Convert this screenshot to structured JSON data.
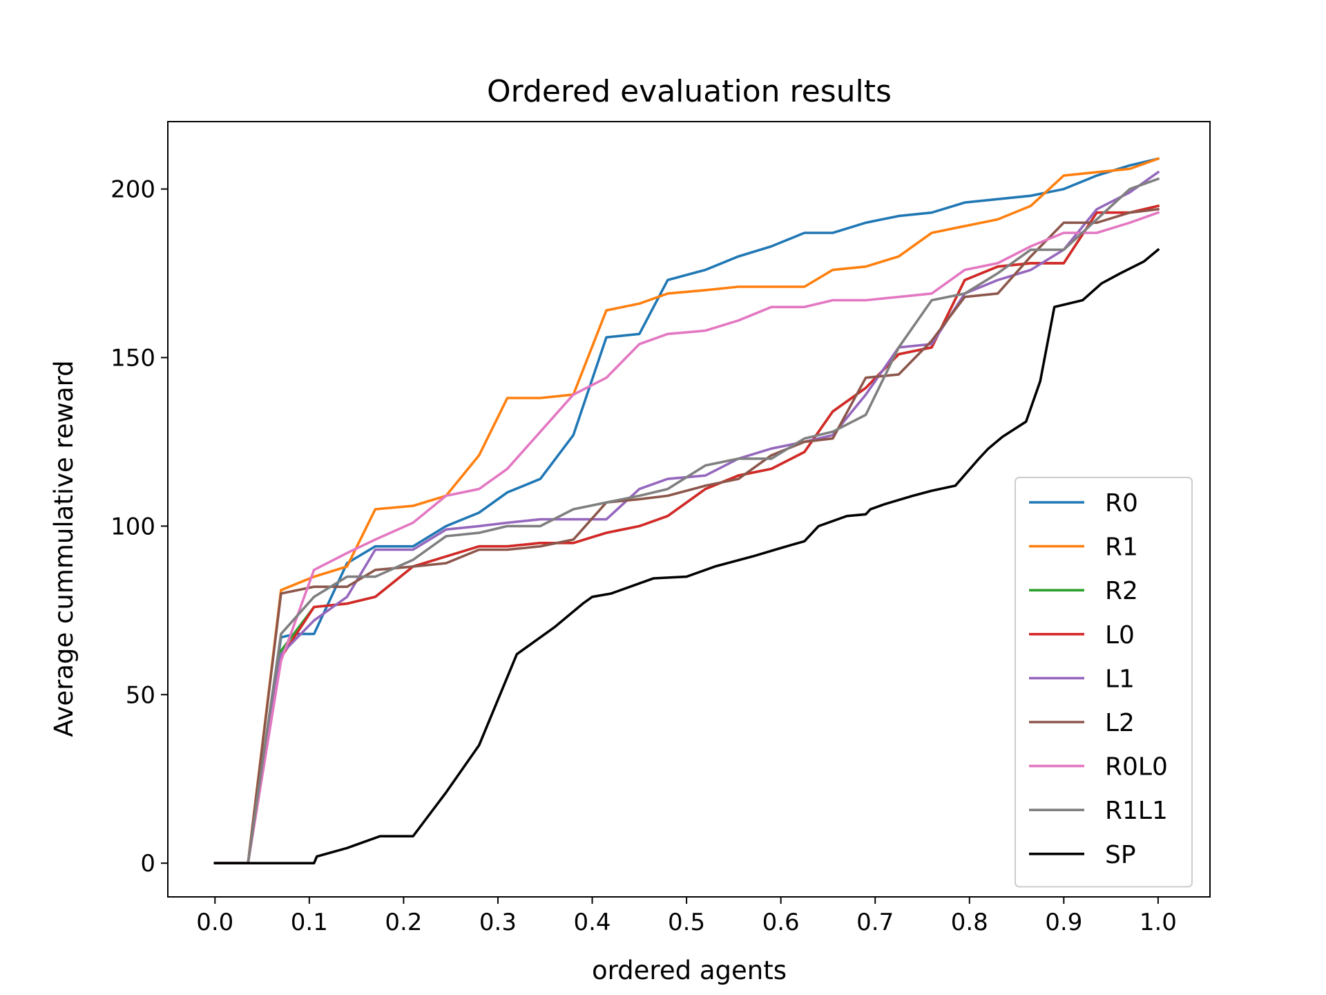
{
  "chart_data": {
    "type": "line",
    "title": "Ordered evaluation results",
    "xlabel": "ordered agents",
    "ylabel": "Average cummulative reward",
    "xlim": [
      -0.05,
      1.055
    ],
    "ylim": [
      -10,
      220
    ],
    "xticks": [
      0.0,
      0.1,
      0.2,
      0.3,
      0.4,
      0.5,
      0.6,
      0.7,
      0.8,
      0.9,
      1.0
    ],
    "xtick_labels": [
      "0.0",
      "0.1",
      "0.2",
      "0.3",
      "0.4",
      "0.5",
      "0.6",
      "0.7",
      "0.8",
      "0.9",
      "1.0"
    ],
    "yticks": [
      0,
      50,
      100,
      150,
      200
    ],
    "ytick_labels": [
      "0",
      "50",
      "100",
      "150",
      "200"
    ],
    "grid": false,
    "legend_position": "lower-right",
    "series": [
      {
        "name": "R0",
        "color": "#1f77b4",
        "points": [
          [
            0,
            0
          ],
          [
            0.035,
            0
          ],
          [
            0.07,
            67
          ],
          [
            0.085,
            68
          ],
          [
            0.105,
            68
          ],
          [
            0.14,
            89
          ],
          [
            0.17,
            94
          ],
          [
            0.21,
            94
          ],
          [
            0.245,
            100
          ],
          [
            0.28,
            104
          ],
          [
            0.31,
            110
          ],
          [
            0.345,
            114
          ],
          [
            0.38,
            127
          ],
          [
            0.415,
            156
          ],
          [
            0.45,
            157
          ],
          [
            0.48,
            173
          ],
          [
            0.52,
            176
          ],
          [
            0.555,
            180
          ],
          [
            0.59,
            183
          ],
          [
            0.625,
            187
          ],
          [
            0.655,
            187
          ],
          [
            0.69,
            190
          ],
          [
            0.725,
            192
          ],
          [
            0.76,
            193
          ],
          [
            0.795,
            196
          ],
          [
            0.83,
            197
          ],
          [
            0.865,
            198
          ],
          [
            0.9,
            200
          ],
          [
            0.935,
            204
          ],
          [
            0.97,
            207
          ],
          [
            1.0,
            209
          ]
        ]
      },
      {
        "name": "R1",
        "color": "#ff7f0e",
        "points": [
          [
            0,
            0
          ],
          [
            0.035,
            0
          ],
          [
            0.07,
            81
          ],
          [
            0.105,
            85
          ],
          [
            0.14,
            88
          ],
          [
            0.17,
            105
          ],
          [
            0.21,
            106
          ],
          [
            0.245,
            109
          ],
          [
            0.28,
            121
          ],
          [
            0.31,
            138
          ],
          [
            0.345,
            138
          ],
          [
            0.38,
            139
          ],
          [
            0.415,
            164
          ],
          [
            0.45,
            166
          ],
          [
            0.48,
            169
          ],
          [
            0.52,
            170
          ],
          [
            0.555,
            171
          ],
          [
            0.59,
            171
          ],
          [
            0.625,
            171
          ],
          [
            0.655,
            176
          ],
          [
            0.69,
            177
          ],
          [
            0.725,
            180
          ],
          [
            0.76,
            187
          ],
          [
            0.795,
            189
          ],
          [
            0.83,
            191
          ],
          [
            0.865,
            195
          ],
          [
            0.9,
            204
          ],
          [
            0.935,
            205
          ],
          [
            0.97,
            206
          ],
          [
            1.0,
            209
          ]
        ]
      },
      {
        "name": "R2",
        "color": "#2ca02c",
        "points": [
          [
            0,
            0
          ],
          [
            0.035,
            0
          ],
          [
            0.07,
            63
          ],
          [
            0.105,
            76
          ],
          [
            0.14,
            77
          ],
          [
            0.17,
            79
          ],
          [
            0.21,
            88
          ],
          [
            0.245,
            91
          ],
          [
            0.28,
            94
          ],
          [
            0.31,
            94
          ],
          [
            0.345,
            95
          ],
          [
            0.38,
            95
          ],
          [
            0.415,
            98
          ],
          [
            0.45,
            100
          ],
          [
            0.48,
            103
          ],
          [
            0.52,
            111
          ],
          [
            0.555,
            115
          ],
          [
            0.59,
            117
          ],
          [
            0.625,
            122
          ],
          [
            0.655,
            134
          ],
          [
            0.69,
            141
          ],
          [
            0.725,
            151
          ],
          [
            0.76,
            153
          ],
          [
            0.795,
            173
          ],
          [
            0.83,
            177
          ],
          [
            0.865,
            178
          ],
          [
            0.9,
            178
          ],
          [
            0.935,
            193
          ],
          [
            0.97,
            193
          ],
          [
            1.0,
            195
          ]
        ]
      },
      {
        "name": "L0",
        "color": "#d62728",
        "points": [
          [
            0,
            0
          ],
          [
            0.035,
            0
          ],
          [
            0.07,
            61
          ],
          [
            0.105,
            76
          ],
          [
            0.14,
            77
          ],
          [
            0.17,
            79
          ],
          [
            0.21,
            88
          ],
          [
            0.245,
            91
          ],
          [
            0.28,
            94
          ],
          [
            0.31,
            94
          ],
          [
            0.345,
            95
          ],
          [
            0.38,
            95
          ],
          [
            0.415,
            98
          ],
          [
            0.45,
            100
          ],
          [
            0.48,
            103
          ],
          [
            0.52,
            111
          ],
          [
            0.555,
            115
          ],
          [
            0.59,
            117
          ],
          [
            0.625,
            122
          ],
          [
            0.655,
            134
          ],
          [
            0.69,
            141
          ],
          [
            0.725,
            151
          ],
          [
            0.76,
            153
          ],
          [
            0.795,
            173
          ],
          [
            0.83,
            177
          ],
          [
            0.865,
            178
          ],
          [
            0.9,
            178
          ],
          [
            0.935,
            193
          ],
          [
            0.97,
            193
          ],
          [
            1.0,
            195
          ]
        ]
      },
      {
        "name": "L1",
        "color": "#9467bd",
        "points": [
          [
            0,
            0
          ],
          [
            0.035,
            0
          ],
          [
            0.07,
            62
          ],
          [
            0.105,
            72
          ],
          [
            0.14,
            79
          ],
          [
            0.17,
            93
          ],
          [
            0.21,
            93
          ],
          [
            0.245,
            99
          ],
          [
            0.28,
            100
          ],
          [
            0.31,
            101
          ],
          [
            0.345,
            102
          ],
          [
            0.38,
            102
          ],
          [
            0.415,
            102
          ],
          [
            0.45,
            111
          ],
          [
            0.48,
            114
          ],
          [
            0.52,
            115
          ],
          [
            0.555,
            120
          ],
          [
            0.59,
            123
          ],
          [
            0.625,
            125
          ],
          [
            0.655,
            127
          ],
          [
            0.69,
            139
          ],
          [
            0.725,
            153
          ],
          [
            0.76,
            154
          ],
          [
            0.795,
            169
          ],
          [
            0.83,
            173
          ],
          [
            0.865,
            176
          ],
          [
            0.9,
            182
          ],
          [
            0.935,
            194
          ],
          [
            0.97,
            199
          ],
          [
            1.0,
            205
          ]
        ]
      },
      {
        "name": "L2",
        "color": "#8c564b",
        "points": [
          [
            0,
            0
          ],
          [
            0.035,
            0
          ],
          [
            0.07,
            80
          ],
          [
            0.105,
            82
          ],
          [
            0.14,
            82
          ],
          [
            0.17,
            87
          ],
          [
            0.21,
            88
          ],
          [
            0.245,
            89
          ],
          [
            0.28,
            93
          ],
          [
            0.31,
            93
          ],
          [
            0.345,
            94
          ],
          [
            0.38,
            96
          ],
          [
            0.415,
            107
          ],
          [
            0.45,
            108
          ],
          [
            0.48,
            109
          ],
          [
            0.52,
            112
          ],
          [
            0.555,
            114
          ],
          [
            0.59,
            121
          ],
          [
            0.625,
            125
          ],
          [
            0.655,
            126
          ],
          [
            0.69,
            144
          ],
          [
            0.725,
            145
          ],
          [
            0.76,
            155
          ],
          [
            0.795,
            168
          ],
          [
            0.83,
            169
          ],
          [
            0.865,
            180
          ],
          [
            0.9,
            190
          ],
          [
            0.935,
            190
          ],
          [
            0.97,
            193
          ],
          [
            1.0,
            194
          ]
        ]
      },
      {
        "name": "R0L0",
        "color": "#e377c2",
        "points": [
          [
            0,
            0
          ],
          [
            0.035,
            0
          ],
          [
            0.07,
            60
          ],
          [
            0.105,
            87
          ],
          [
            0.14,
            92
          ],
          [
            0.17,
            96
          ],
          [
            0.21,
            101
          ],
          [
            0.245,
            109
          ],
          [
            0.28,
            111
          ],
          [
            0.31,
            117
          ],
          [
            0.345,
            128
          ],
          [
            0.38,
            139
          ],
          [
            0.415,
            144
          ],
          [
            0.45,
            154
          ],
          [
            0.48,
            157
          ],
          [
            0.52,
            158
          ],
          [
            0.555,
            161
          ],
          [
            0.59,
            165
          ],
          [
            0.625,
            165
          ],
          [
            0.655,
            167
          ],
          [
            0.69,
            167
          ],
          [
            0.725,
            168
          ],
          [
            0.76,
            169
          ],
          [
            0.795,
            176
          ],
          [
            0.83,
            178
          ],
          [
            0.865,
            183
          ],
          [
            0.9,
            187
          ],
          [
            0.935,
            187
          ],
          [
            0.97,
            190
          ],
          [
            1.0,
            193
          ]
        ]
      },
      {
        "name": "R1L1",
        "color": "#7f7f7f",
        "points": [
          [
            0,
            0
          ],
          [
            0.035,
            0
          ],
          [
            0.07,
            68
          ],
          [
            0.105,
            79
          ],
          [
            0.14,
            85
          ],
          [
            0.17,
            85
          ],
          [
            0.21,
            90
          ],
          [
            0.245,
            97
          ],
          [
            0.28,
            98
          ],
          [
            0.31,
            100
          ],
          [
            0.345,
            100
          ],
          [
            0.38,
            105
          ],
          [
            0.415,
            107
          ],
          [
            0.45,
            109
          ],
          [
            0.48,
            111
          ],
          [
            0.52,
            118
          ],
          [
            0.555,
            120
          ],
          [
            0.59,
            120
          ],
          [
            0.625,
            126
          ],
          [
            0.655,
            128
          ],
          [
            0.69,
            133
          ],
          [
            0.725,
            153
          ],
          [
            0.76,
            167
          ],
          [
            0.795,
            169
          ],
          [
            0.83,
            175
          ],
          [
            0.865,
            182
          ],
          [
            0.9,
            182
          ],
          [
            0.935,
            191
          ],
          [
            0.97,
            200
          ],
          [
            1.0,
            203
          ]
        ]
      },
      {
        "name": "SP",
        "color": "#000000",
        "points": [
          [
            0,
            0
          ],
          [
            0.035,
            0
          ],
          [
            0.07,
            0
          ],
          [
            0.105,
            0
          ],
          [
            0.108,
            2
          ],
          [
            0.14,
            4.5
          ],
          [
            0.175,
            8
          ],
          [
            0.21,
            8
          ],
          [
            0.245,
            21
          ],
          [
            0.28,
            35
          ],
          [
            0.32,
            62
          ],
          [
            0.36,
            70
          ],
          [
            0.39,
            77
          ],
          [
            0.4,
            79
          ],
          [
            0.42,
            80
          ],
          [
            0.45,
            83
          ],
          [
            0.465,
            84.5
          ],
          [
            0.5,
            85
          ],
          [
            0.53,
            88
          ],
          [
            0.57,
            91
          ],
          [
            0.6,
            93.5
          ],
          [
            0.625,
            95.5
          ],
          [
            0.64,
            100
          ],
          [
            0.67,
            103
          ],
          [
            0.69,
            103.5
          ],
          [
            0.695,
            105
          ],
          [
            0.71,
            106.5
          ],
          [
            0.74,
            109
          ],
          [
            0.76,
            110.5
          ],
          [
            0.785,
            112
          ],
          [
            0.81,
            120
          ],
          [
            0.82,
            123
          ],
          [
            0.835,
            126.5
          ],
          [
            0.86,
            131
          ],
          [
            0.875,
            143
          ],
          [
            0.89,
            165
          ],
          [
            0.92,
            167
          ],
          [
            0.94,
            172
          ],
          [
            0.96,
            175
          ],
          [
            0.985,
            178.5
          ],
          [
            1.0,
            182
          ]
        ]
      }
    ]
  }
}
